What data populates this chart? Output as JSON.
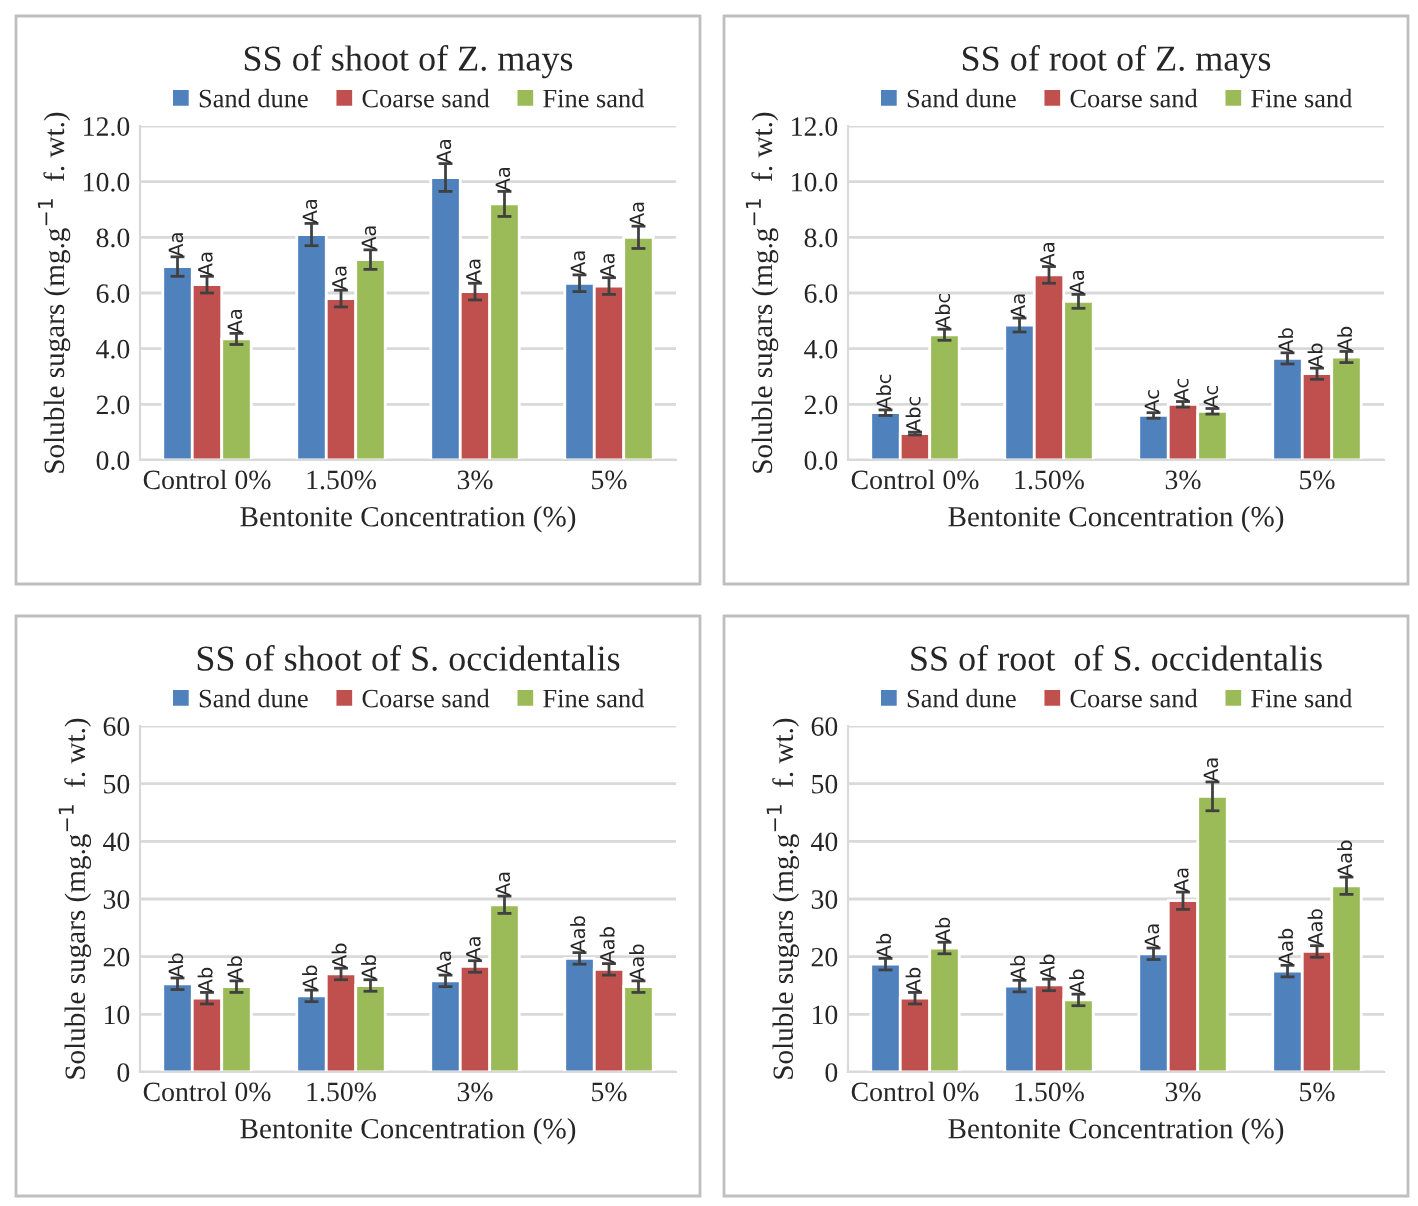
{
  "chart_data": [
    {
      "type": "bar",
      "title": "SS of shoot of Z. mays",
      "xlabel": "Bentonite Concentration (%)",
      "ylabel": "Soluble sugars (mg.g$^{−1}$  f. wt.)",
      "categories": [
        "Control 0%",
        "1.50%",
        "3%",
        "5%"
      ],
      "ylim": [
        0,
        12
      ],
      "yticks": [
        {
          "value": 0,
          "label": "0.0"
        },
        {
          "value": 2,
          "label": "2.0"
        },
        {
          "value": 4,
          "label": "4.0"
        },
        {
          "value": 6,
          "label": "6.0"
        },
        {
          "value": 8,
          "label": "8.0"
        },
        {
          "value": 10,
          "label": "10.0"
        },
        {
          "value": 12,
          "label": "12.0"
        }
      ],
      "grid": "y",
      "legend": "top",
      "series": [
        {
          "name": "Sand dune",
          "color": "#4f81bd",
          "values": [
            6.95,
            8.1,
            10.15,
            6.35
          ],
          "errors": [
            0.35,
            0.4,
            0.5,
            0.3
          ],
          "value_labels": [
            "Aa",
            "Aa",
            "Aa",
            "Aa"
          ]
        },
        {
          "name": "Coarse sand",
          "color": "#c0504d",
          "values": [
            6.3,
            5.8,
            6.05,
            6.25
          ],
          "errors": [
            0.3,
            0.3,
            0.3,
            0.3
          ],
          "value_labels": [
            "Aa",
            "Aa",
            "Aa",
            "Aa"
          ]
        },
        {
          "name": "Fine sand",
          "color": "#9bbb59",
          "values": [
            4.35,
            7.2,
            9.2,
            8.0
          ],
          "errors": [
            0.2,
            0.35,
            0.45,
            0.4
          ],
          "value_labels": [
            "Aa",
            "Aa",
            "Aa",
            "Aa"
          ]
        }
      ]
    },
    {
      "type": "bar",
      "title": "SS of root of Z. mays",
      "xlabel": "Bentonite Concentration (%)",
      "ylabel": "Soluble sugars (mg.g$^{−1}$  f. wt.)",
      "categories": [
        "Control 0%",
        "1.50%",
        "3%",
        "5%"
      ],
      "ylim": [
        0,
        12
      ],
      "yticks": [
        {
          "value": 0,
          "label": "0.0"
        },
        {
          "value": 2,
          "label": "2.0"
        },
        {
          "value": 4,
          "label": "4.0"
        },
        {
          "value": 6,
          "label": "6.0"
        },
        {
          "value": 8,
          "label": "8.0"
        },
        {
          "value": 10,
          "label": "10.0"
        },
        {
          "value": 12,
          "label": "12.0"
        }
      ],
      "grid": "y",
      "legend": "top",
      "series": [
        {
          "name": "Sand dune",
          "color": "#4f81bd",
          "values": [
            1.7,
            4.85,
            1.6,
            3.65
          ],
          "errors": [
            0.1,
            0.25,
            0.1,
            0.2
          ],
          "value_labels": [
            "Abc",
            "Aa",
            "Ac",
            "Ab"
          ]
        },
        {
          "name": "Coarse sand",
          "color": "#c0504d",
          "values": [
            0.95,
            6.65,
            2.0,
            3.1
          ],
          "errors": [
            0.05,
            0.3,
            0.1,
            0.2
          ],
          "value_labels": [
            "Abc",
            "Aa",
            "Ac",
            "Ab"
          ]
        },
        {
          "name": "Fine sand",
          "color": "#9bbb59",
          "values": [
            4.5,
            5.7,
            1.75,
            3.7
          ],
          "errors": [
            0.2,
            0.25,
            0.1,
            0.2
          ],
          "value_labels": [
            "Abc",
            "Aa",
            "Ac",
            "Ab"
          ]
        }
      ]
    },
    {
      "type": "bar",
      "title": "SS of shoot of S. occidentalis",
      "xlabel": "Bentonite Concentration (%)",
      "ylabel": "Soluble sugars (mg.g$^{−1}$  f. wt.)",
      "categories": [
        "Control 0%",
        "1.50%",
        "3%",
        "5%"
      ],
      "ylim": [
        0,
        60
      ],
      "yticks": [
        0,
        10,
        20,
        30,
        40,
        50,
        60
      ],
      "grid": "y",
      "legend": "top",
      "series": [
        {
          "name": "Sand dune",
          "color": "#4f81bd",
          "values": [
            15.3,
            13.2,
            15.8,
            19.7
          ],
          "errors": [
            1,
            1,
            1,
            1
          ],
          "value_labels": [
            "Ab",
            "Ab",
            "Aa",
            "Aab"
          ]
        },
        {
          "name": "Coarse sand",
          "color": "#c0504d",
          "values": [
            12.8,
            17.0,
            18.3,
            17.8
          ],
          "errors": [
            1,
            1,
            1,
            1
          ],
          "value_labels": [
            "Ab",
            "Ab",
            "Aa",
            "Aab"
          ]
        },
        {
          "name": "Fine sand",
          "color": "#9bbb59",
          "values": [
            14.8,
            15.0,
            29.0,
            14.8
          ],
          "errors": [
            1,
            1,
            1.5,
            1
          ],
          "value_labels": [
            "Ab",
            "Ab",
            "Aa",
            "Aab"
          ]
        }
      ]
    },
    {
      "type": "bar",
      "title": "SS of root  of S. occidentalis",
      "xlabel": "Bentonite Concentration (%)",
      "ylabel": "Soluble sugars (mg.g$^{−1}$  f. wt.)",
      "categories": [
        "Control 0%",
        "1.50%",
        "3%",
        "5%"
      ],
      "ylim": [
        0,
        60
      ],
      "yticks": [
        0,
        10,
        20,
        30,
        40,
        50,
        60
      ],
      "grid": "y",
      "legend": "top",
      "series": [
        {
          "name": "Sand dune",
          "color": "#4f81bd",
          "values": [
            18.7,
            14.9,
            20.5,
            17.5
          ],
          "errors": [
            1,
            1,
            1,
            1
          ],
          "value_labels": [
            "Ab",
            "Ab",
            "Aa",
            "Aab"
          ]
        },
        {
          "name": "Coarse sand",
          "color": "#c0504d",
          "values": [
            12.8,
            15.1,
            29.7,
            20.9
          ],
          "errors": [
            1,
            1,
            1.5,
            1
          ],
          "value_labels": [
            "Ab",
            "Ab",
            "Aa",
            "Aab"
          ]
        },
        {
          "name": "Fine sand",
          "color": "#9bbb59",
          "values": [
            21.5,
            12.5,
            47.8,
            32.3
          ],
          "errors": [
            1,
            1,
            2.5,
            1.5
          ],
          "value_labels": [
            "Ab",
            "Ab",
            "Aa",
            "Aab"
          ]
        }
      ]
    }
  ]
}
